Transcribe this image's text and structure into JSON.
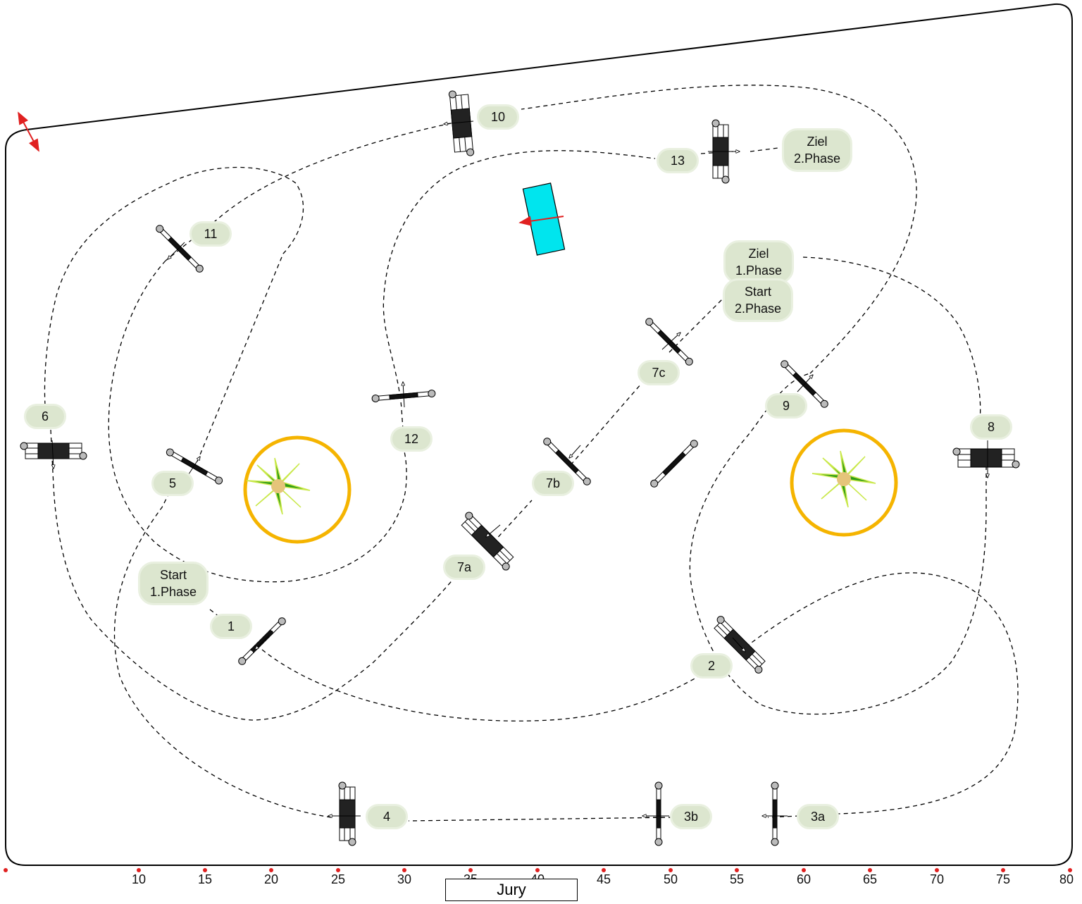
{
  "labels": {
    "start1": "Start\n1.Phase",
    "ziel1": "Ziel\n1.Phase",
    "start2": "Start\n2.Phase",
    "ziel2": "Ziel\n2.Phase",
    "n1": "1",
    "n2": "2",
    "n3a": "3a",
    "n3b": "3b",
    "n4": "4",
    "n5": "5",
    "n6": "6",
    "n7a": "7a",
    "n7b": "7b",
    "n7c": "7c",
    "n8": "8",
    "n9": "9",
    "n10": "10",
    "n11": "11",
    "n12": "12",
    "n13": "13"
  },
  "ruler": {
    "ticks": [
      "10",
      "15",
      "20",
      "25",
      "30",
      "35",
      "40",
      "45",
      "50",
      "55",
      "60",
      "65",
      "70",
      "75",
      "80"
    ]
  },
  "jury": "Jury",
  "colors": {
    "label_fill": "#dce6cf",
    "tree_ring": "#f5b400",
    "box": "#00e5ee",
    "arrow": "#e02020",
    "marker": "#e02020"
  },
  "icons": {
    "obstacle": "jump-icon",
    "tree": "tree-icon",
    "gate": "entry-arrow-icon"
  }
}
